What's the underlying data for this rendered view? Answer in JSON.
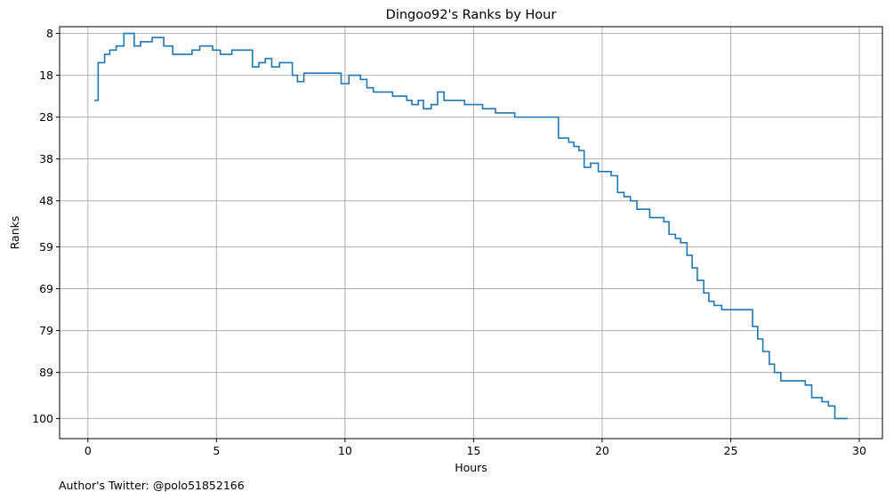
{
  "footnote": "Author's Twitter: @polo51852166",
  "chart_data": {
    "type": "line",
    "step": "post",
    "title": "Dingoo92's Ranks by Hour",
    "xlabel": "Hours",
    "ylabel": "Ranks",
    "xlim": [
      -1.1,
      30.9
    ],
    "ylim": [
      104.8,
      6.4
    ],
    "y_inverted": true,
    "x_ticks": [
      0,
      5,
      10,
      15,
      20,
      25,
      30
    ],
    "x_tick_labels": [
      "0",
      "5",
      "10",
      "15",
      "20",
      "25",
      "30"
    ],
    "y_ticks": [
      8,
      18,
      28,
      38,
      48,
      59,
      69,
      79,
      89,
      100
    ],
    "y_tick_labels": [
      "8",
      "18",
      "28",
      "38",
      "48",
      "59",
      "69",
      "79",
      "89",
      "100"
    ],
    "grid": true,
    "line_color": "#1f77b4",
    "grid_color": "#b0b0b0",
    "series": [
      {
        "name": "",
        "x": [
          0.25,
          0.4,
          0.65,
          0.85,
          1.1,
          1.4,
          1.8,
          2.05,
          2.5,
          2.95,
          3.3,
          4.05,
          4.35,
          4.85,
          5.15,
          5.6,
          6.4,
          6.65,
          6.9,
          7.15,
          7.45,
          7.95,
          8.15,
          8.4,
          9.85,
          10.15,
          10.6,
          10.85,
          11.1,
          11.85,
          12.4,
          12.6,
          12.85,
          13.05,
          13.35,
          13.6,
          13.85,
          14.65,
          15.35,
          15.85,
          16.6,
          18.3,
          18.7,
          18.9,
          19.1,
          19.3,
          19.55,
          19.85,
          20.35,
          20.6,
          20.85,
          21.1,
          21.35,
          21.85,
          22.4,
          22.6,
          22.85,
          23.05,
          23.3,
          23.5,
          23.7,
          23.95,
          24.15,
          24.35,
          24.65,
          25.05,
          25.85,
          26.05,
          26.25,
          26.5,
          26.7,
          26.95,
          27.15,
          27.9,
          28.15,
          28.55,
          28.8,
          29.05,
          29.3,
          29.55
        ],
        "y": [
          24,
          15,
          13,
          12,
          11,
          8,
          11,
          10,
          9,
          11,
          13,
          12,
          11,
          12,
          13,
          12,
          16,
          15,
          14,
          16,
          15,
          18,
          19.5,
          17.5,
          20,
          18,
          19,
          21,
          22,
          23,
          24,
          25,
          24,
          26,
          25,
          22,
          24,
          25,
          26,
          27,
          28,
          33,
          34,
          35,
          36,
          40,
          39,
          41,
          42,
          46,
          47,
          48,
          50,
          52,
          53,
          56,
          57,
          58,
          61,
          64,
          67,
          70,
          72,
          73,
          74,
          74,
          78,
          81,
          84,
          87,
          89,
          91,
          91,
          92,
          95,
          96,
          97,
          100,
          100,
          100
        ]
      }
    ]
  }
}
